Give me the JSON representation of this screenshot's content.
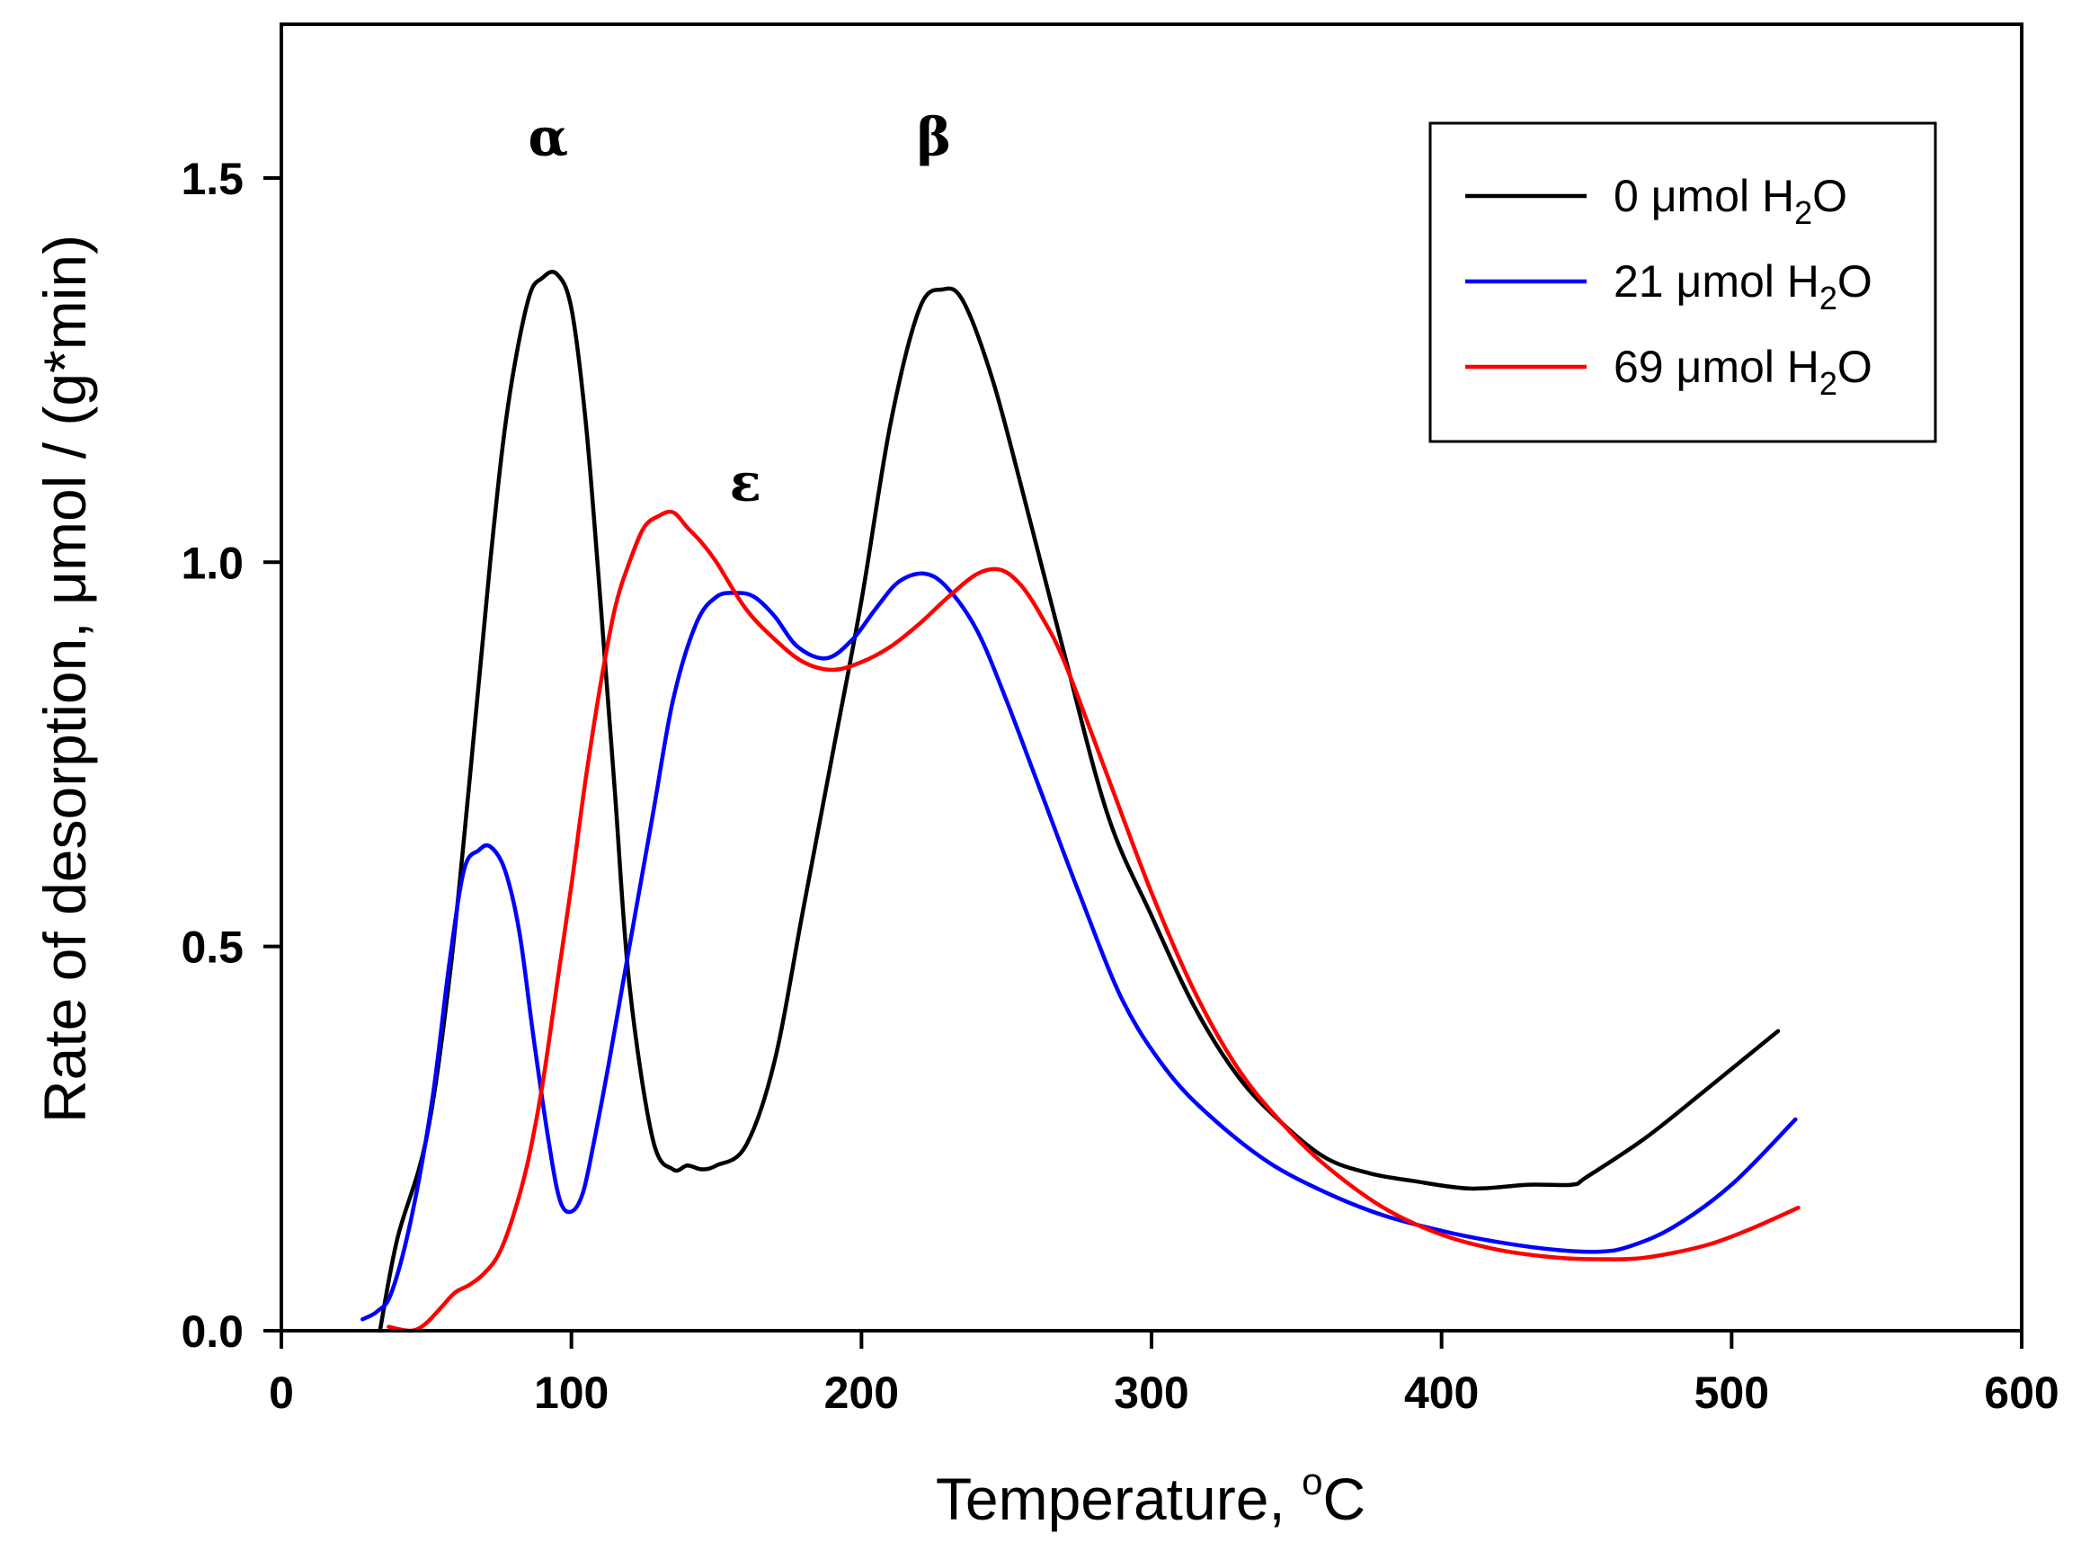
{
  "chart_data": {
    "type": "line",
    "title": "",
    "xlabel": "Temperature, ",
    "xlabel_unit_sup": "o",
    "xlabel_unit": "C",
    "ylabel": "Rate of desorption, μmol / (g*min)",
    "xlim": [
      0,
      600
    ],
    "ylim": [
      0,
      1.7
    ],
    "xticks": [
      0,
      100,
      200,
      300,
      400,
      500,
      600
    ],
    "xtick_labels": [
      "0",
      "100",
      "200",
      "300",
      "400",
      "500",
      "600"
    ],
    "yticks": [
      0,
      0.5,
      1.0,
      1.5
    ],
    "ytick_labels": [
      "0.0",
      "0.5",
      "1.0",
      "1.5"
    ],
    "grid": false,
    "legend_position": "top-right",
    "annotations": [
      {
        "text": "α",
        "x": 92,
        "y": 1.53
      },
      {
        "text": "ε",
        "x": 160,
        "y": 1.08
      },
      {
        "text": "β",
        "x": 225,
        "y": 1.53
      }
    ],
    "series": [
      {
        "name": "0 μmol H2O",
        "legend_label": "0 μmol H",
        "legend_sub": "2",
        "legend_tail": "O",
        "color": "#000000",
        "x": [
          34,
          40,
          50,
          58,
          65,
          72,
          78,
          85,
          90,
          95,
          100,
          105,
          110,
          115,
          120,
          128,
          135,
          140,
          145,
          150,
          160,
          170,
          180,
          190,
          200,
          210,
          220,
          228,
          235,
          245,
          255,
          270,
          285,
          300,
          315,
          330,
          345,
          360,
          375,
          390,
          410,
          430,
          445,
          450,
          470,
          490,
          516
        ],
        "y": [
          0.0,
          0.12,
          0.25,
          0.46,
          0.72,
          1.0,
          1.2,
          1.34,
          1.37,
          1.375,
          1.33,
          1.18,
          0.95,
          0.7,
          0.45,
          0.25,
          0.21,
          0.215,
          0.21,
          0.215,
          0.24,
          0.35,
          0.55,
          0.75,
          0.95,
          1.18,
          1.33,
          1.355,
          1.34,
          1.24,
          1.1,
          0.88,
          0.67,
          0.54,
          0.42,
          0.33,
          0.27,
          0.225,
          0.205,
          0.195,
          0.185,
          0.19,
          0.19,
          0.2,
          0.25,
          0.31,
          0.39
        ]
      },
      {
        "name": "21 μmol H2O",
        "legend_label": "21 μmol H",
        "legend_sub": "2",
        "legend_tail": "O",
        "color": "#0000ff",
        "x": [
          28,
          33,
          38,
          45,
          52,
          58,
          63,
          68,
          72,
          77,
          82,
          87,
          92,
          96,
          100,
          104,
          108,
          113,
          120,
          128,
          135,
          143,
          150,
          157,
          163,
          170,
          178,
          188,
          197,
          205,
          213,
          222,
          230,
          240,
          250,
          262,
          275,
          290,
          305,
          320,
          340,
          360,
          380,
          400,
          420,
          440,
          455,
          465,
          480,
          500,
          522
        ],
        "y": [
          0.015,
          0.025,
          0.05,
          0.15,
          0.3,
          0.48,
          0.6,
          0.625,
          0.63,
          0.6,
          0.52,
          0.38,
          0.25,
          0.17,
          0.155,
          0.18,
          0.25,
          0.35,
          0.5,
          0.67,
          0.82,
          0.92,
          0.955,
          0.96,
          0.955,
          0.93,
          0.89,
          0.875,
          0.9,
          0.94,
          0.975,
          0.985,
          0.965,
          0.91,
          0.82,
          0.7,
          0.57,
          0.43,
          0.34,
          0.28,
          0.22,
          0.18,
          0.15,
          0.13,
          0.115,
          0.105,
          0.103,
          0.11,
          0.135,
          0.19,
          0.275
        ]
      },
      {
        "name": "69 μmol H2O",
        "legend_label": "69 μmol H",
        "legend_sub": "2",
        "legend_tail": "O",
        "color": "#ff0000",
        "x": [
          37,
          45,
          50,
          55,
          60,
          65,
          70,
          75,
          80,
          85,
          90,
          95,
          100,
          105,
          110,
          115,
          120,
          125,
          130,
          135,
          140,
          145,
          150,
          160,
          170,
          180,
          190,
          200,
          210,
          220,
          230,
          240,
          248,
          255,
          262,
          270,
          285,
          300,
          315,
          330,
          345,
          360,
          380,
          400,
          420,
          440,
          455,
          470,
          490,
          505,
          523
        ],
        "y": [
          0.005,
          0.0,
          0.01,
          0.03,
          0.05,
          0.06,
          0.075,
          0.1,
          0.15,
          0.22,
          0.32,
          0.45,
          0.58,
          0.72,
          0.84,
          0.94,
          1.0,
          1.045,
          1.06,
          1.065,
          1.045,
          1.025,
          1.0,
          0.94,
          0.9,
          0.87,
          0.86,
          0.87,
          0.89,
          0.92,
          0.955,
          0.985,
          0.99,
          0.97,
          0.93,
          0.87,
          0.72,
          0.57,
          0.44,
          0.34,
          0.27,
          0.215,
          0.16,
          0.125,
          0.105,
          0.095,
          0.093,
          0.095,
          0.11,
          0.13,
          0.16
        ]
      }
    ]
  }
}
